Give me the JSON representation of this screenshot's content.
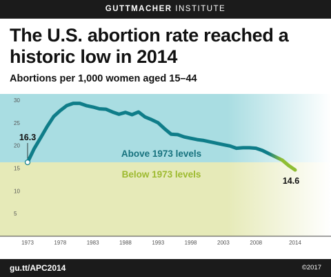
{
  "header": {
    "brand_bold": "GUTTMACHER",
    "brand_rest": " INSTITUTE"
  },
  "title": "The U.S. abortion rate reached a historic low in 2014",
  "subtitle": "Abortions per 1,000 women aged 15–44",
  "footer": {
    "url": "gu.tt/APC2014",
    "copyright": "©2017"
  },
  "colors": {
    "above_bg": "#a9dde2",
    "below_bg": "#e6eab8",
    "line": "#0f7d89",
    "line_end": "#8fbe33",
    "above_text": "#17727e",
    "below_text": "#9dba2f"
  },
  "chart_data": {
    "type": "line",
    "x": [
      1973,
      1974,
      1975,
      1976,
      1977,
      1978,
      1979,
      1980,
      1981,
      1982,
      1983,
      1984,
      1985,
      1986,
      1987,
      1988,
      1989,
      1990,
      1991,
      1992,
      1993,
      1994,
      1995,
      1996,
      1997,
      1998,
      1999,
      2000,
      2001,
      2002,
      2003,
      2004,
      2005,
      2006,
      2007,
      2008,
      2009,
      2010,
      2011,
      2012,
      2013,
      2014
    ],
    "values": [
      16.3,
      19.3,
      21.7,
      24.2,
      26.4,
      27.7,
      28.8,
      29.3,
      29.3,
      28.8,
      28.5,
      28.1,
      28.0,
      27.4,
      26.9,
      27.3,
      26.8,
      27.4,
      26.3,
      25.7,
      25.0,
      23.7,
      22.5,
      22.4,
      21.9,
      21.6,
      21.3,
      21.1,
      20.8,
      20.5,
      20.2,
      19.9,
      19.4,
      19.5,
      19.5,
      19.4,
      18.9,
      18.2,
      17.5,
      16.8,
      15.6,
      14.6
    ],
    "xticks": [
      "1973",
      "1978",
      "1983",
      "1988",
      "1993",
      "1998",
      "2003",
      "2008",
      "2014"
    ],
    "yticks": [
      "5",
      "10",
      "15",
      "20",
      "25",
      "30"
    ],
    "ylim": [
      0,
      30
    ],
    "baseline": 16.3,
    "region_labels": {
      "above": "Above 1973 levels",
      "below": "Below 1973 levels"
    },
    "annotations": {
      "start": "16.3",
      "end": "14.6"
    },
    "grid": false,
    "legend": "none"
  }
}
